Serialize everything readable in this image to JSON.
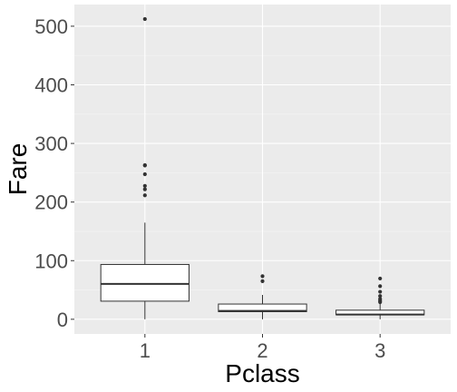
{
  "chart_data": {
    "type": "boxplot",
    "xlabel": "Pclass",
    "ylabel": "Fare",
    "categories": [
      "1",
      "2",
      "3"
    ],
    "ylim": [
      -25,
      537
    ],
    "yticks": [
      0,
      100,
      200,
      300,
      400,
      500
    ],
    "grid": true,
    "legend": "none",
    "boxes": [
      {
        "category": "1",
        "whisker_low": 0,
        "q1": 30.9,
        "median": 60.3,
        "q3": 93.5,
        "whisker_high": 164.9,
        "outliers": [
          512.3,
          263,
          262.4,
          247.5,
          227.5,
          221.8,
          211.5
        ]
      },
      {
        "category": "2",
        "whisker_low": 0,
        "q1": 13,
        "median": 14.25,
        "q3": 26,
        "whisker_high": 41.6,
        "outliers": [
          73.5,
          65
        ]
      },
      {
        "category": "3",
        "whisker_low": 0,
        "q1": 7.75,
        "median": 8.05,
        "q3": 15.5,
        "whisker_high": 27.9,
        "outliers": [
          69.55,
          56.5,
          46.9,
          39.7,
          34.4,
          31.3,
          29.1
        ]
      }
    ],
    "colors": {
      "panel_background": "#ebebeb",
      "grid_major": "#ffffff",
      "grid_minor": "#f5f5f5",
      "box_fill": "#ffffff",
      "box_stroke": "#333333",
      "tick_text": "#4d4d4d",
      "axis_title": "#000000"
    }
  }
}
